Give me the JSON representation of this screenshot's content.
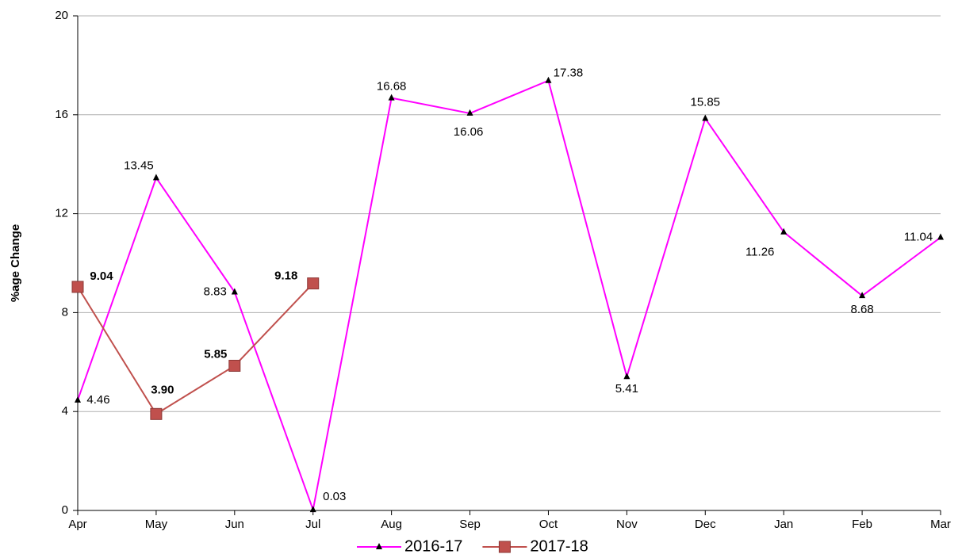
{
  "chart_data": {
    "type": "line",
    "y_label": "%age Change",
    "categories": [
      "Apr",
      "May",
      "Jun",
      "Jul",
      "Aug",
      "Sep",
      "Oct",
      "Nov",
      "Dec",
      "Jan",
      "Feb",
      "Mar"
    ],
    "series": [
      {
        "name": "2016-17",
        "color": "#ff00ff",
        "values": [
          4.46,
          13.45,
          8.83,
          0.03,
          16.68,
          16.06,
          17.38,
          5.41,
          15.85,
          11.26,
          8.68,
          11.04
        ],
        "value_labels": [
          "4.46",
          "13.45",
          "8.83",
          "0.03",
          "16.68",
          "16.06",
          "17.38",
          "5.41",
          "15.85",
          "11.26",
          "8.68",
          "11.04"
        ]
      },
      {
        "name": "2017-18",
        "color": "#c0504d",
        "values": [
          9.04,
          3.9,
          5.85,
          9.18,
          null,
          null,
          null,
          null,
          null,
          null,
          null,
          null
        ],
        "value_labels": [
          "9.04",
          "3.90",
          "5.85",
          "9.18",
          null,
          null,
          null,
          null,
          null,
          null,
          null,
          null
        ]
      }
    ],
    "ylim": [
      0,
      20
    ],
    "yticks": [
      0,
      4,
      8,
      12,
      16,
      20
    ],
    "grid": true,
    "legend": "bottom"
  }
}
